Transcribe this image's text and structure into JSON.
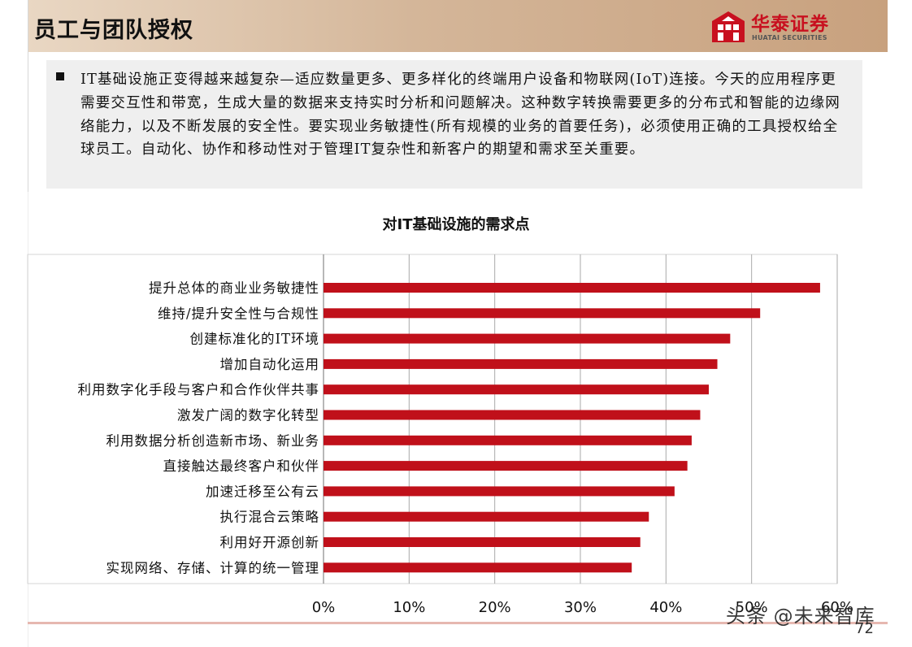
{
  "header": {
    "title": "员工与团队授权",
    "logo": {
      "cn": "华泰证券",
      "en": "HUATAI SECURITIES"
    }
  },
  "intro": {
    "text": "IT基础设施正变得越来越复杂—适应数量更多、更多样化的终端用户设备和物联网(IoT)连接。今天的应用程序更需要交互性和带宽，生成大量的数据来支持实时分析和问题解决。这种数字转换需要更多的分布式和智能的边缘网络能力，以及不断发展的安全性。要实现业务敏捷性(所有规模的业务的首要任务)，必须使用正确的工具授权给全球员工。自动化、协作和移动性对于管理IT复杂性和新客户的期望和需求至关重要。"
  },
  "footer": {
    "page_number": "72",
    "watermark": "头条 @未来智库"
  },
  "colors": {
    "bar": "#c0101a",
    "header_accent": "#c8a17e",
    "logo_red": "#c8101f"
  },
  "chart_data": {
    "type": "bar",
    "orientation": "horizontal",
    "title": "对IT基础设施的需求点",
    "categories": [
      "提升总体的商业业务敏捷性",
      "维持/提升安全性与合规性",
      "创建标准化的IT环境",
      "增加自动化运用",
      "利用数字化手段与客户和合作伙伴共事",
      "激发广阔的数字化转型",
      "利用数据分析创造新市场、新业务",
      "直接触达最终客户和伙伴",
      "加速迁移至公有云",
      "执行混合云策略",
      "利用好开源创新",
      "实现网络、存储、计算的统一管理"
    ],
    "values": [
      58,
      51,
      47.5,
      46,
      45,
      44,
      43,
      42.5,
      41,
      38,
      37,
      36
    ],
    "xlim": [
      0,
      60
    ],
    "xticks": [
      "0%",
      "10%",
      "20%",
      "30%",
      "40%",
      "50%",
      "60%"
    ],
    "grid": true
  }
}
